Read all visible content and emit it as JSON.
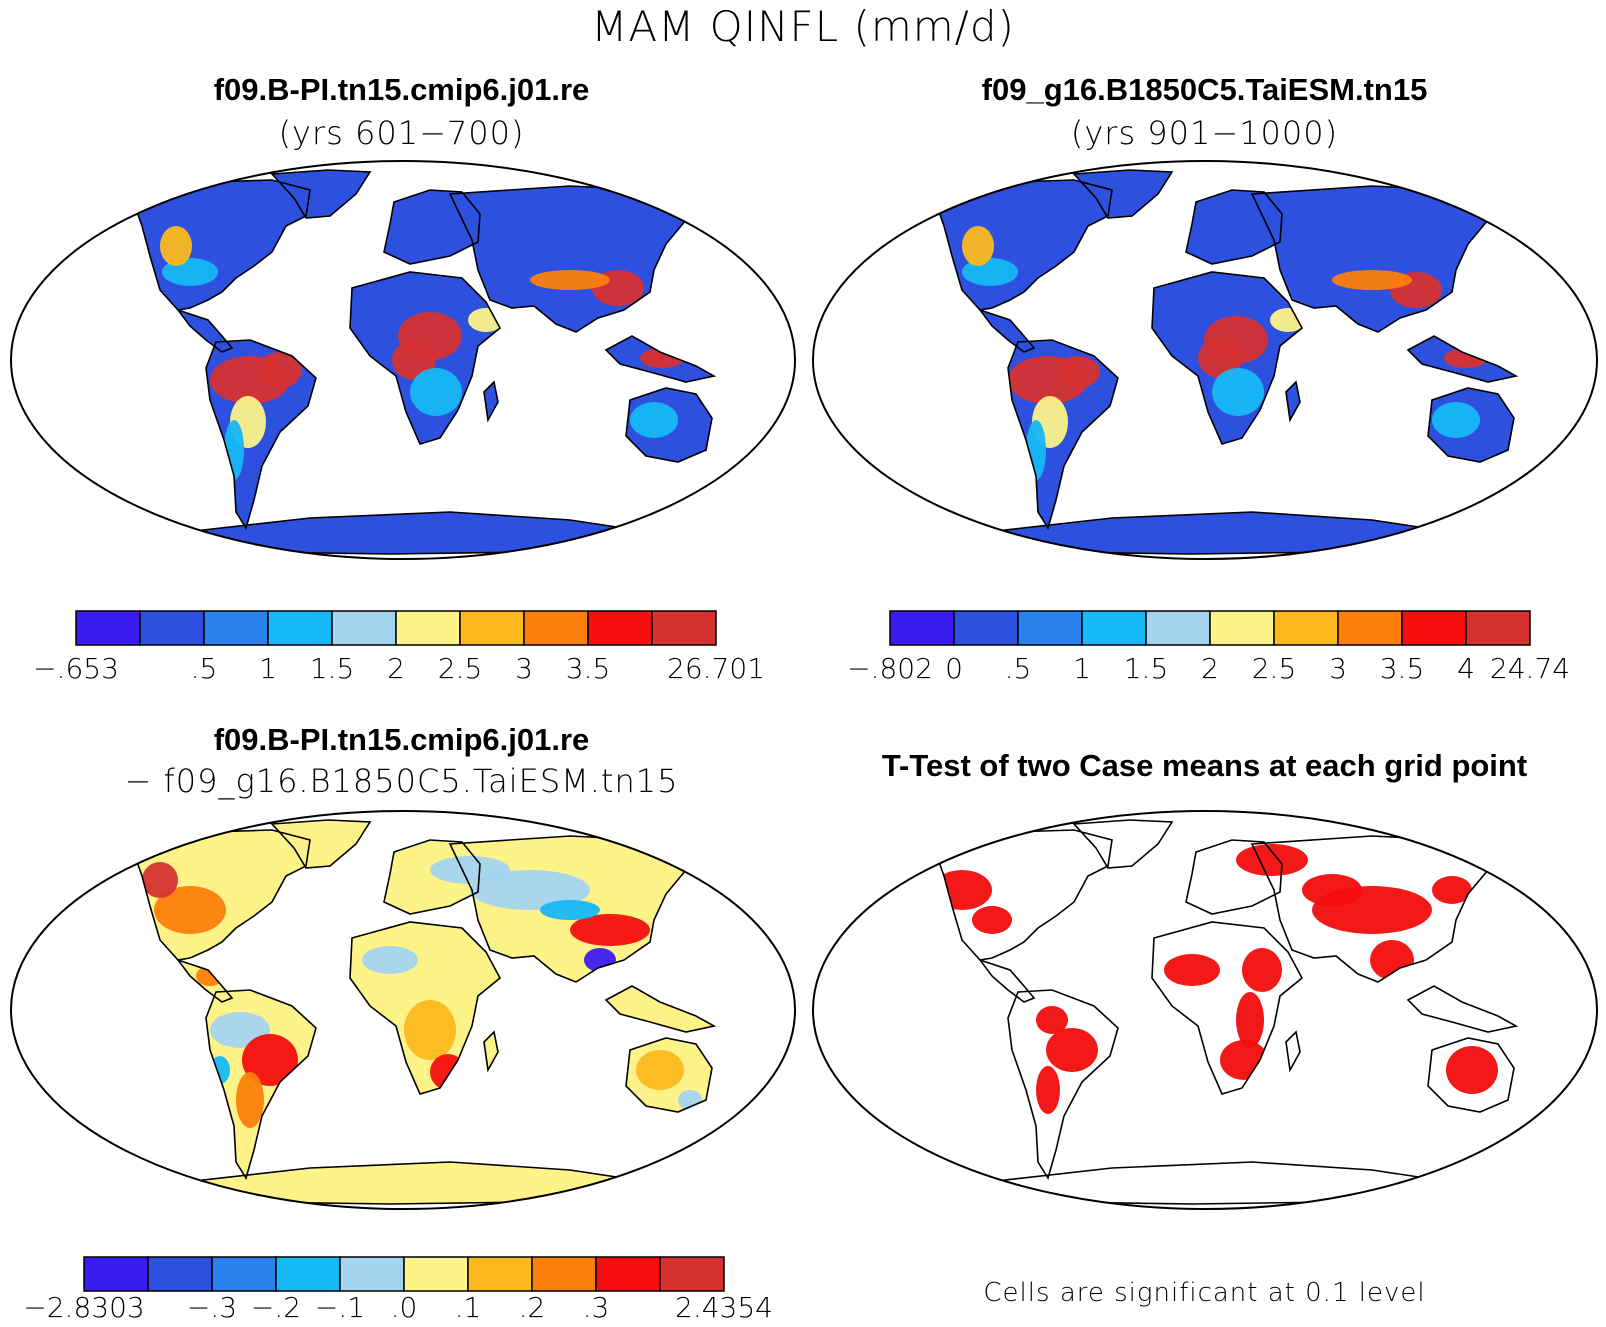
{
  "figure": {
    "title": "MAM QINFL (mm/d)"
  },
  "colors": {
    "palette": [
      "#3b1cf0",
      "#2e50df",
      "#2a82ee",
      "#16b8f5",
      "#a4d4f0",
      "#fdf389",
      "#fcb81d",
      "#fc7f0b",
      "#f60e0e",
      "#d63131"
    ],
    "significance": "#f20d0d"
  },
  "panels": [
    {
      "id": "case1",
      "title": "f09.B-PI.tn15.cmip6.j01.re",
      "subtitle": "(yrs 601−700)",
      "colorbar_labels": [
        "−.653",
        ".5",
        "1",
        "1.5",
        "2",
        "2.5",
        "3",
        "3.5",
        "26.701"
      ],
      "colorbar_positions": [
        0,
        2,
        3,
        4,
        5,
        6,
        7,
        8,
        10
      ]
    },
    {
      "id": "case2",
      "title": "f09_g16.B1850C5.TaiESM.tn15",
      "subtitle": "(yrs 901−1000)",
      "colorbar_labels": [
        "−.802",
        "0",
        ".5",
        "1",
        "1.5",
        "2",
        "2.5",
        "3",
        "3.5",
        "4",
        "24.74"
      ],
      "colorbar_positions": [
        0,
        1,
        2,
        3,
        4,
        5,
        6,
        7,
        8,
        9,
        10
      ]
    },
    {
      "id": "difference",
      "title": "f09.B-PI.tn15.cmip6.j01.re",
      "subtitle": "− f09_g16.B1850C5.TaiESM.tn15",
      "colorbar_labels": [
        "−2.8303",
        "−.3",
        "−.2",
        "−.1",
        ".0",
        ".1",
        ".2",
        ".3",
        "2.4354"
      ],
      "colorbar_positions": [
        0,
        2,
        3,
        4,
        5,
        6,
        7,
        8,
        10
      ]
    },
    {
      "id": "ttest",
      "title": "T-Test of two Case means at each grid point",
      "note": "Cells are significant at 0.1 level"
    }
  ]
}
